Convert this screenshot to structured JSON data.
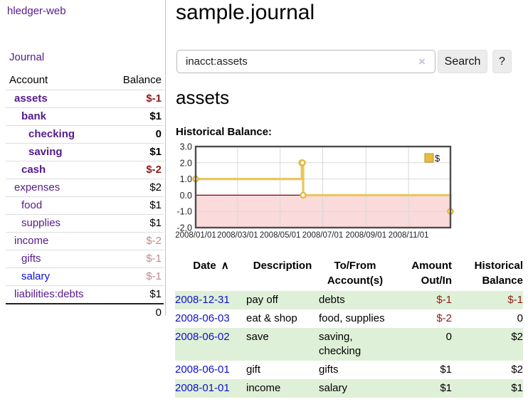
{
  "colors": {
    "link_visited": "#551a8b",
    "link_unvisited": "#0f0fd0",
    "negative": "#8e1a1a",
    "negative_faded": "#bd8b8b",
    "row_highlight": "#dff0d8",
    "button_bg": "#ececec",
    "chart_line": "#e9c75f",
    "chart_marker_stroke": "#e2b845",
    "chart_negative_fill": "#fadada",
    "chart_zero_line": "#8b0000",
    "chart_border": "#4d4d4d",
    "chart_grid": "#d9d9d9"
  },
  "sidebar": {
    "brand": "hledger-web",
    "journal_link": "Journal",
    "accounts": {
      "headers": {
        "account": "Account",
        "balance": "Balance"
      },
      "rows": [
        {
          "name": "assets",
          "balance": "$-1",
          "depth": 1,
          "bold": true,
          "balance_style": "negative",
          "link_style": "visited"
        },
        {
          "name": "bank",
          "balance": "$1",
          "depth": 2,
          "bold": true,
          "balance_style": "normal",
          "link_style": "visited"
        },
        {
          "name": "checking",
          "balance": "0",
          "depth": 3,
          "bold": true,
          "balance_style": "normal",
          "link_style": "visited"
        },
        {
          "name": "saving",
          "balance": "$1",
          "depth": 3,
          "bold": true,
          "balance_style": "normal",
          "link_style": "visited"
        },
        {
          "name": "cash",
          "balance": "$-2",
          "depth": 2,
          "bold": true,
          "balance_style": "negative",
          "link_style": "visited"
        },
        {
          "name": "expenses",
          "balance": "$2",
          "depth": 1,
          "bold": false,
          "balance_style": "normal",
          "link_style": "visited"
        },
        {
          "name": "food",
          "balance": "$1",
          "depth": 2,
          "bold": false,
          "balance_style": "normal",
          "link_style": "visited"
        },
        {
          "name": "supplies",
          "balance": "$1",
          "depth": 2,
          "bold": false,
          "balance_style": "normal",
          "link_style": "visited"
        },
        {
          "name": "income",
          "balance": "$-2",
          "depth": 1,
          "bold": false,
          "balance_style": "negative-faded",
          "link_style": "visited"
        },
        {
          "name": "gifts",
          "balance": "$-1",
          "depth": 2,
          "bold": false,
          "balance_style": "negative-faded",
          "link_style": "visited"
        },
        {
          "name": "salary",
          "balance": "$-1",
          "depth": 2,
          "bold": false,
          "balance_style": "negative-faded",
          "link_style": "unvisited"
        },
        {
          "name": "liabilities:debts",
          "balance": "$1",
          "depth": 1,
          "bold": false,
          "balance_style": "normal",
          "link_style": "visited"
        }
      ],
      "total": "0"
    }
  },
  "header": {
    "title": "sample.journal"
  },
  "search": {
    "query": "inacct:assets",
    "clear_icon": "×",
    "button_label": "Search",
    "help_label": "?"
  },
  "account_page": {
    "title": "assets",
    "chart_label": "Historical Balance:"
  },
  "chart_data": {
    "type": "line",
    "style": "step-after",
    "title": "Historical Balance",
    "series": [
      {
        "name": "$",
        "points": [
          [
            "2008-01-01",
            1
          ],
          [
            "2008-06-01",
            2
          ],
          [
            "2008-06-02",
            2
          ],
          [
            "2008-06-03",
            0
          ],
          [
            "2008-12-31",
            -1
          ]
        ]
      }
    ],
    "x_range": [
      "2008-01-01",
      "2008-12-31"
    ],
    "x_ticks": [
      "2008/01/01",
      "2008/03/01",
      "2008/05/01",
      "2008/07/01",
      "2008/09/01",
      "2008/11/01"
    ],
    "y_ticks": [
      3.0,
      2.0,
      1.0,
      0.0,
      -1.0,
      -2.0
    ],
    "ylim": [
      -2,
      3
    ],
    "grid": true,
    "legend": "$",
    "legend_position": "top-right",
    "negative_region_shaded": true
  },
  "register": {
    "sort_icon": "∧",
    "columns": [
      {
        "label": "Date",
        "align": "left",
        "sorted": true
      },
      {
        "label": "Description",
        "align": "left",
        "sorted": false
      },
      {
        "label": "To/From Account(s)",
        "align": "left",
        "sorted": false
      },
      {
        "label": "Amount Out/In",
        "align": "right",
        "sorted": false
      },
      {
        "label": "Historical Balance",
        "align": "right",
        "sorted": false
      }
    ],
    "rows": [
      {
        "date": "2008-12-31",
        "description": "pay off",
        "accounts": "debts",
        "amount": "$-1",
        "amount_style": "negative",
        "balance": "$-1",
        "balance_style": "negative"
      },
      {
        "date": "2008-06-03",
        "description": "eat & shop",
        "accounts": "food, supplies",
        "amount": "$-2",
        "amount_style": "negative",
        "balance": "0",
        "balance_style": "normal"
      },
      {
        "date": "2008-06-02",
        "description": "save",
        "accounts": "saving, checking",
        "amount": "0",
        "amount_style": "normal",
        "balance": "$2",
        "balance_style": "normal"
      },
      {
        "date": "2008-06-01",
        "description": "gift",
        "accounts": "gifts",
        "amount": "$1",
        "amount_style": "normal",
        "balance": "$2",
        "balance_style": "normal"
      },
      {
        "date": "2008-01-01",
        "description": "income",
        "accounts": "salary",
        "amount": "$1",
        "amount_style": "normal",
        "balance": "$1",
        "balance_style": "normal"
      }
    ]
  }
}
